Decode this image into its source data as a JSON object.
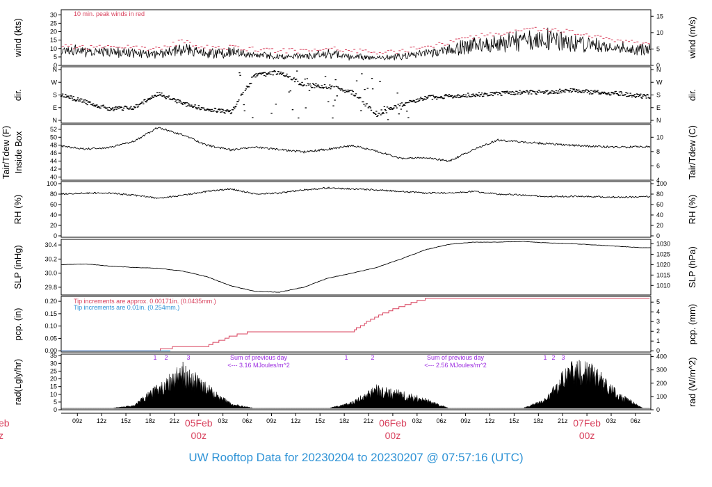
{
  "title": "UW Rooftop Data for 20230204  to  20230207 @ 07:57:16  (UTC)",
  "colors": {
    "red": "#d8405c",
    "blue": "#2f93d6",
    "purple": "#9a28e0",
    "axis": "#000000"
  },
  "panels": {
    "wind": {
      "ylabel": "wind (kts)",
      "ylabel_right": "wind (m/s)",
      "left_ticks": [
        "0",
        "5",
        "10",
        "15",
        "20",
        "25",
        "30"
      ],
      "right_ticks": [
        "0",
        "5",
        "10",
        "15"
      ],
      "note": "10 min. peak winds in red"
    },
    "dir": {
      "ylabel": "dir.",
      "ylabel_right": "dir.",
      "ticks": [
        "N",
        "E",
        "S",
        "W",
        "N"
      ]
    },
    "temp": {
      "ylabel_1": "Tair/Tdew (F)",
      "ylabel_2": "Inside Box",
      "ylabel_right": "Tair/Tdew (C)",
      "left_ticks": [
        "40",
        "42",
        "44",
        "46",
        "48",
        "50",
        "52"
      ],
      "right_ticks": [
        "4",
        "6",
        "8",
        "10"
      ]
    },
    "rh": {
      "ylabel": "RH (%)",
      "ylabel_right": "RH (%)",
      "ticks": [
        "0",
        "20",
        "40",
        "60",
        "80",
        "100"
      ]
    },
    "slp": {
      "ylabel": "SLP (inHg)",
      "ylabel_right": "SLP (hPa)",
      "left_ticks": [
        "29.8",
        "30.0",
        "30.2",
        "30.4"
      ],
      "right_ticks": [
        "1010",
        "1015",
        "1020",
        "1025",
        "1030"
      ]
    },
    "pcp": {
      "ylabel": "pcp. (in)",
      "ylabel_right": "pcp. (mm)",
      "left_ticks": [
        "0.00",
        "0.05",
        "0.10",
        "0.15",
        "0.20"
      ],
      "right_ticks": [
        "0",
        "1",
        "2",
        "3",
        "4",
        "5"
      ],
      "note_red": "Tip increments are approx. 0.00171in. (0.0435mm.)",
      "note_blue": "Tip increments are 0.01in. (0.254mm.)"
    },
    "rad": {
      "ylabel": "rad(Lgly/hr)",
      "ylabel_right": "rad (W/m^2)",
      "left_ticks": [
        "0",
        "5",
        "10",
        "15",
        "20",
        "25",
        "30",
        "35"
      ],
      "right_ticks": [
        "0",
        "100",
        "200",
        "300",
        "400"
      ],
      "notes": [
        {
          "line1": "Sum of previous day",
          "line2": "<--- 3.16 MJoules/m^2"
        },
        {
          "line1": "Sum of previous day",
          "line2": "<--- 2.56 MJoules/m^2"
        }
      ],
      "markers": [
        "1",
        "2",
        "3",
        "1",
        "2",
        "1",
        "2",
        "3"
      ]
    }
  },
  "x_axis": {
    "ticks": [
      "09z",
      "12z",
      "15z",
      "18z",
      "21z",
      "03z",
      "06z",
      "09z",
      "12z",
      "15z",
      "18z",
      "21z",
      "03z",
      "06z",
      "09z",
      "12z",
      "15z",
      "18z",
      "21z",
      "03z",
      "06z"
    ],
    "dates": [
      {
        "date": "05Feb",
        "time": "00z"
      },
      {
        "date": "06Feb",
        "time": "00z"
      },
      {
        "date": "07Feb",
        "time": "00z"
      }
    ],
    "edge_left": {
      "top": "eb",
      "bottom": "z"
    }
  },
  "chart_data": {
    "type": "line",
    "x_unit": "hours since 2023-02-04 07:00 UTC",
    "x": [
      0,
      3,
      6,
      9,
      12,
      15,
      18,
      21,
      24,
      27,
      30,
      33,
      36,
      39,
      42,
      45,
      48,
      51,
      54,
      57,
      60,
      63,
      66,
      69,
      72
    ],
    "series": [
      {
        "name": "wind",
        "values": [
          8,
          7,
          7,
          6,
          5,
          9,
          6,
          7,
          5,
          4,
          4,
          6,
          4,
          3,
          4,
          6,
          8,
          11,
          12,
          14,
          15,
          13,
          11,
          9,
          8
        ]
      },
      {
        "name": "10 min. peak winds",
        "values": [
          10,
          9,
          10,
          9,
          8,
          13,
          9,
          9,
          8,
          7,
          7,
          9,
          7,
          6,
          7,
          9,
          12,
          16,
          18,
          20,
          21,
          19,
          16,
          13,
          12
        ]
      },
      {
        "name": "dir.",
        "values": [
          180,
          130,
          80,
          90,
          190,
          120,
          80,
          60,
          320,
          340,
          250,
          240,
          200,
          40,
          110,
          160,
          170,
          180,
          190,
          200,
          200,
          210,
          200,
          190,
          170
        ]
      },
      {
        "name": "Tair/Tdew",
        "values": [
          47.8,
          47,
          47.4,
          49,
          52.5,
          50.6,
          48,
          46.8,
          47.5,
          46.9,
          46.3,
          47,
          47.9,
          46.5,
          44.7,
          44.9,
          44,
          47,
          49.3,
          48.8,
          48.4,
          48,
          47.7,
          47.5,
          47.6
        ]
      },
      {
        "name": "RH",
        "values": [
          80,
          82,
          82,
          78,
          72,
          78,
          85,
          90,
          80,
          82,
          88,
          92,
          90,
          88,
          85,
          82,
          82,
          85,
          80,
          78,
          75,
          76,
          75,
          74,
          75
        ]
      },
      {
        "name": "SLP",
        "values": [
          30.12,
          30.13,
          30.1,
          30.08,
          30.07,
          30.03,
          29.95,
          29.82,
          29.74,
          29.73,
          29.8,
          29.93,
          30.0,
          30.08,
          30.2,
          30.33,
          30.41,
          30.44,
          30.44,
          30.45,
          30.43,
          30.42,
          30.4,
          30.38,
          30.36
        ]
      },
      {
        "name": "pcp",
        "values": [
          0,
          0,
          0,
          0,
          0.004,
          0.02,
          0.02,
          0.06,
          0.08,
          0.08,
          0.08,
          0.08,
          0.08,
          0.14,
          0.18,
          0.21,
          0.21,
          0.21,
          0.21,
          0.21,
          0.21,
          0.21,
          0.21,
          0.21,
          0.21
        ]
      },
      {
        "name": "rad",
        "values": [
          0,
          0,
          0,
          2,
          14,
          26,
          14,
          3,
          0,
          0,
          0,
          0,
          4,
          13,
          10,
          6,
          0,
          0,
          0,
          0,
          6,
          28,
          24,
          9,
          0
        ]
      }
    ],
    "xlabel": "",
    "ylabel": ""
  }
}
